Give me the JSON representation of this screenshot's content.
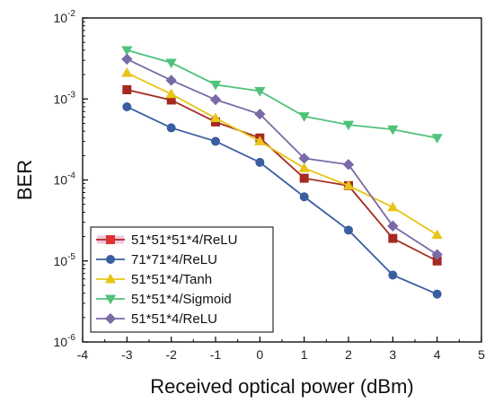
{
  "chart_data": {
    "type": "line",
    "xlabel": "Received optical power (dBm)",
    "ylabel": "BER",
    "xlim": [
      -4,
      5
    ],
    "ylim": [
      1e-06,
      0.01
    ],
    "yscale": "log",
    "x_ticks": [
      -4,
      -3,
      -2,
      -1,
      0,
      1,
      2,
      3,
      4,
      5
    ],
    "x_tick_labels": [
      "-4",
      "-3",
      "-2",
      "-1",
      "0",
      "1",
      "2",
      "3",
      "4",
      "5"
    ],
    "y_tick_labels": [
      {
        "value": 1e-06,
        "base": "10",
        "exp": "-6"
      },
      {
        "value": 1e-05,
        "base": "10",
        "exp": "-5"
      },
      {
        "value": 0.0001,
        "base": "10",
        "exp": "-4"
      },
      {
        "value": 0.001,
        "base": "10",
        "exp": "-3"
      },
      {
        "value": 0.01,
        "base": "10",
        "exp": "-2"
      }
    ],
    "grid": false,
    "legend_position": "bottom-left",
    "x": [
      -3,
      -2,
      -1,
      0,
      1,
      2,
      3,
      4
    ],
    "series": [
      {
        "name": "51*51*51*4/ReLU",
        "color": "#a52a22",
        "marker": "square",
        "legend_marker_color": "#d33",
        "values": [
          0.0013,
          0.00097,
          0.00052,
          0.00033,
          0.000105,
          8.5e-05,
          1.9e-05,
          1e-05
        ]
      },
      {
        "name": "71*71*4/ReLU",
        "color": "#3a5fa0",
        "marker": "circle",
        "values": [
          0.0008,
          0.00044,
          0.0003,
          0.000165,
          6.2e-05,
          2.4e-05,
          6.7e-06,
          3.9e-06
        ]
      },
      {
        "name": "51*51*4/Tanh",
        "color": "#e8c419",
        "marker": "triangle-up",
        "values": [
          0.0021,
          0.00115,
          0.00058,
          0.0003,
          0.00014,
          8.5e-05,
          4.6e-05,
          2.1e-05
        ]
      },
      {
        "name": "51*51*4/Sigmoid",
        "color": "#4fc27a",
        "marker": "triangle-down",
        "values": [
          0.004,
          0.0028,
          0.0015,
          0.00125,
          0.00061,
          0.00048,
          0.00042,
          0.00033
        ]
      },
      {
        "name": "51*51*4/ReLU",
        "color": "#7a6aa6",
        "marker": "diamond",
        "values": [
          0.0031,
          0.0017,
          0.00098,
          0.00065,
          0.000185,
          0.000155,
          2.7e-05,
          1.2e-05
        ]
      }
    ]
  }
}
